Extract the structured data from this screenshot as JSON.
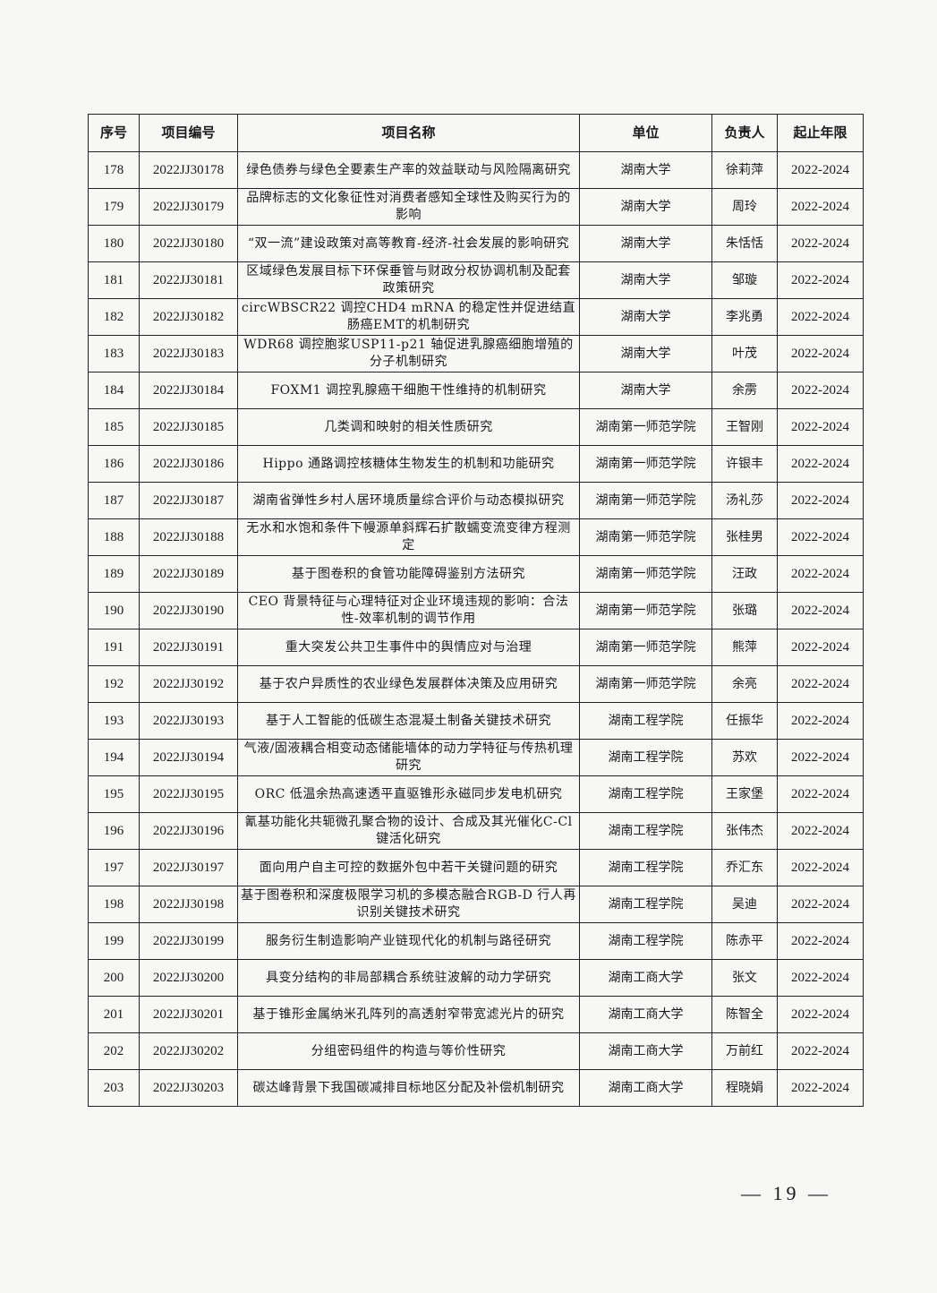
{
  "table": {
    "headers": [
      "序号",
      "项目编号",
      "项目名称",
      "单位",
      "负责人",
      "起止年限"
    ],
    "rows": [
      [
        "178",
        "2022JJ30178",
        "绿色债券与绿色全要素生产率的效益联动与风险隔离研究",
        "湖南大学",
        "徐莉萍",
        "2022-2024"
      ],
      [
        "179",
        "2022JJ30179",
        "品牌标志的文化象征性对消费者感知全球性及购买行为的影响",
        "湖南大学",
        "周玲",
        "2022-2024"
      ],
      [
        "180",
        "2022JJ30180",
        "“双一流”建设政策对高等教育-经济-社会发展的影响研究",
        "湖南大学",
        "朱恬恬",
        "2022-2024"
      ],
      [
        "181",
        "2022JJ30181",
        "区域绿色发展目标下环保垂管与财政分权协调机制及配套政策研究",
        "湖南大学",
        "邹璇",
        "2022-2024"
      ],
      [
        "182",
        "2022JJ30182",
        "circWBSCR22 调控CHD4 mRNA 的稳定性并促进结直肠癌EMT的机制研究",
        "湖南大学",
        "李兆勇",
        "2022-2024"
      ],
      [
        "183",
        "2022JJ30183",
        "WDR68 调控胞浆USP11-p21 轴促进乳腺癌细胞增殖的分子机制研究",
        "湖南大学",
        "叶茂",
        "2022-2024"
      ],
      [
        "184",
        "2022JJ30184",
        "FOXM1 调控乳腺癌干细胞干性维持的机制研究",
        "湖南大学",
        "余雳",
        "2022-2024"
      ],
      [
        "185",
        "2022JJ30185",
        "几类调和映射的相关性质研究",
        "湖南第一师范学院",
        "王智刚",
        "2022-2024"
      ],
      [
        "186",
        "2022JJ30186",
        "Hippo 通路调控核糖体生物发生的机制和功能研究",
        "湖南第一师范学院",
        "许银丰",
        "2022-2024"
      ],
      [
        "187",
        "2022JJ30187",
        "湖南省弹性乡村人居环境质量综合评价与动态模拟研究",
        "湖南第一师范学院",
        "汤礼莎",
        "2022-2024"
      ],
      [
        "188",
        "2022JJ30188",
        "无水和水饱和条件下幔源单斜辉石扩散蠕变流变律方程测定",
        "湖南第一师范学院",
        "张桂男",
        "2022-2024"
      ],
      [
        "189",
        "2022JJ30189",
        "基于图卷积的食管功能障碍鉴别方法研究",
        "湖南第一师范学院",
        "汪政",
        "2022-2024"
      ],
      [
        "190",
        "2022JJ30190",
        "CEO 背景特征与心理特征对企业环境违规的影响：合法性-效率机制的调节作用",
        "湖南第一师范学院",
        "张璐",
        "2022-2024"
      ],
      [
        "191",
        "2022JJ30191",
        "重大突发公共卫生事件中的舆情应对与治理",
        "湖南第一师范学院",
        "熊萍",
        "2022-2024"
      ],
      [
        "192",
        "2022JJ30192",
        "基于农户异质性的农业绿色发展群体决策及应用研究",
        "湖南第一师范学院",
        "余亮",
        "2022-2024"
      ],
      [
        "193",
        "2022JJ30193",
        "基于人工智能的低碳生态混凝土制备关键技术研究",
        "湖南工程学院",
        "任振华",
        "2022-2024"
      ],
      [
        "194",
        "2022JJ30194",
        "气液/固液耦合相变动态储能墙体的动力学特征与传热机理研究",
        "湖南工程学院",
        "苏欢",
        "2022-2024"
      ],
      [
        "195",
        "2022JJ30195",
        "ORC 低温余热高速透平直驱锥形永磁同步发电机研究",
        "湖南工程学院",
        "王家堡",
        "2022-2024"
      ],
      [
        "196",
        "2022JJ30196",
        "氰基功能化共轭微孔聚合物的设计、合成及其光催化C-Cl键活化研究",
        "湖南工程学院",
        "张伟杰",
        "2022-2024"
      ],
      [
        "197",
        "2022JJ30197",
        "面向用户自主可控的数据外包中若干关键问题的研究",
        "湖南工程学院",
        "乔汇东",
        "2022-2024"
      ],
      [
        "198",
        "2022JJ30198",
        "基于图卷积和深度极限学习机的多模态融合RGB-D 行人再识别关键技术研究",
        "湖南工程学院",
        "吴迪",
        "2022-2024"
      ],
      [
        "199",
        "2022JJ30199",
        "服务衍生制造影响产业链现代化的机制与路径研究",
        "湖南工程学院",
        "陈赤平",
        "2022-2024"
      ],
      [
        "200",
        "2022JJ30200",
        "具变分结构的非局部耦合系统驻波解的动力学研究",
        "湖南工商大学",
        "张文",
        "2022-2024"
      ],
      [
        "201",
        "2022JJ30201",
        "基于锥形金属纳米孔阵列的高透射窄带宽滤光片的研究",
        "湖南工商大学",
        "陈智全",
        "2022-2024"
      ],
      [
        "202",
        "2022JJ30202",
        "分组密码组件的构造与等价性研究",
        "湖南工商大学",
        "万前红",
        "2022-2024"
      ],
      [
        "203",
        "2022JJ30203",
        "碳达峰背景下我国碳减排目标地区分配及补偿机制研究",
        "湖南工商大学",
        "程晓娟",
        "2022-2024"
      ]
    ]
  },
  "footer": {
    "page_number": "— 19 —"
  }
}
